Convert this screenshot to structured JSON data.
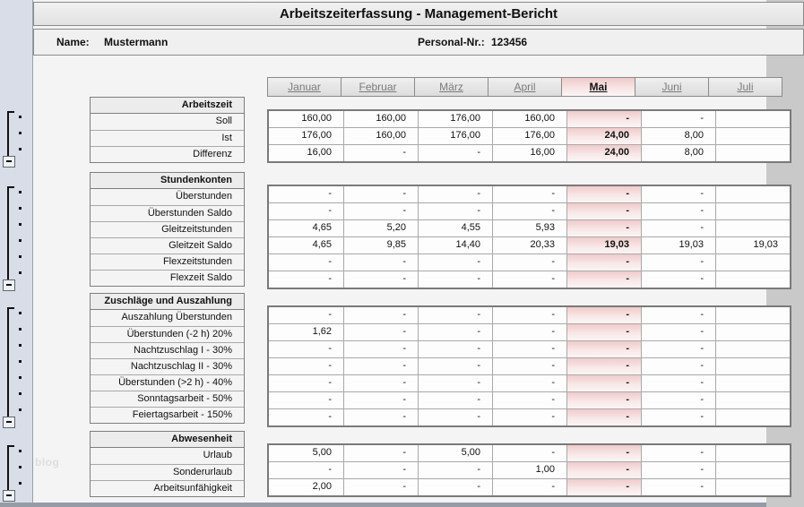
{
  "header": {
    "title": "Arbeitszeiterfassung - Management-Bericht",
    "name_label": "Name:",
    "name_value": "Mustermann",
    "personal_label": "Personal-Nr.:",
    "personal_value": "123456"
  },
  "months": [
    "Januar",
    "Februar",
    "März",
    "April",
    "Mai",
    "Juni",
    "Juli"
  ],
  "active_month_index": 4,
  "sections": [
    {
      "title": "Arbeitszeit",
      "rows": [
        {
          "label": "Soll",
          "values": [
            "160,00",
            "160,00",
            "176,00",
            "160,00",
            "-",
            "-",
            ""
          ]
        },
        {
          "label": "Ist",
          "values": [
            "176,00",
            "160,00",
            "176,00",
            "176,00",
            "24,00",
            "8,00",
            ""
          ]
        },
        {
          "label": "Differenz",
          "values": [
            "16,00",
            "-",
            "-",
            "16,00",
            "24,00",
            "8,00",
            ""
          ]
        }
      ]
    },
    {
      "title": "Stundenkonten",
      "rows": [
        {
          "label": "Überstunden",
          "values": [
            "-",
            "-",
            "-",
            "-",
            "-",
            "-",
            ""
          ]
        },
        {
          "label": "Überstunden Saldo",
          "values": [
            "-",
            "-",
            "-",
            "-",
            "-",
            "-",
            ""
          ]
        },
        {
          "label": "Gleitzeitstunden",
          "values": [
            "4,65",
            "5,20",
            "4,55",
            "5,93",
            "-",
            "-",
            ""
          ]
        },
        {
          "label": "Gleitzeit Saldo",
          "values": [
            "4,65",
            "9,85",
            "14,40",
            "20,33",
            "19,03",
            "19,03",
            "19,03"
          ]
        },
        {
          "label": "Flexzeitstunden",
          "values": [
            "-",
            "-",
            "-",
            "-",
            "-",
            "-",
            ""
          ]
        },
        {
          "label": "Flexzeit Saldo",
          "values": [
            "-",
            "-",
            "-",
            "-",
            "-",
            "-",
            ""
          ]
        }
      ]
    },
    {
      "title": "Zuschläge und Auszahlung",
      "rows": [
        {
          "label": "Auszahlung Überstunden",
          "values": [
            "-",
            "-",
            "-",
            "-",
            "-",
            "-",
            ""
          ]
        },
        {
          "label": "Überstunden (-2 h) 20%",
          "values": [
            "1,62",
            "-",
            "-",
            "-",
            "-",
            "-",
            ""
          ]
        },
        {
          "label": "Nachtzuschlag I - 30%",
          "values": [
            "-",
            "-",
            "-",
            "-",
            "-",
            "-",
            ""
          ]
        },
        {
          "label": "Nachtzuschlag II - 30%",
          "values": [
            "-",
            "-",
            "-",
            "-",
            "-",
            "-",
            ""
          ]
        },
        {
          "label": "Überstunden (>2 h) - 40%",
          "values": [
            "-",
            "-",
            "-",
            "-",
            "-",
            "-",
            ""
          ]
        },
        {
          "label": "Sonntagsarbeit - 50%",
          "values": [
            "-",
            "-",
            "-",
            "-",
            "-",
            "-",
            ""
          ]
        },
        {
          "label": "Feiertagsarbeit - 150%",
          "values": [
            "-",
            "-",
            "-",
            "-",
            "-",
            "-",
            ""
          ]
        }
      ]
    },
    {
      "title": "Abwesenheit",
      "rows": [
        {
          "label": "Urlaub",
          "values": [
            "5,00",
            "-",
            "5,00",
            "-",
            "-",
            "-",
            ""
          ]
        },
        {
          "label": "Sonderurlaub",
          "values": [
            "-",
            "-",
            "-",
            "1,00",
            "-",
            "-",
            ""
          ]
        },
        {
          "label": "Arbeitsunfähigkeit",
          "values": [
            "2,00",
            "-",
            "-",
            "-",
            "-",
            "-",
            ""
          ]
        }
      ]
    }
  ],
  "watermark": "blog",
  "colors": {
    "month_highlight": "#f0cbcb",
    "month_header_text": "#7b7b7b",
    "gutter_background": "#d9dde7"
  }
}
